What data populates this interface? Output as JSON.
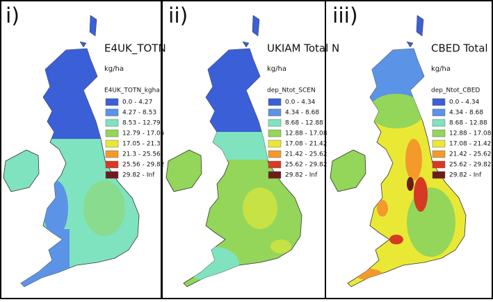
{
  "panels": [
    {
      "label": "i)",
      "title": "E4UK_TOTN",
      "unit": "kg/ha",
      "legend_title": "E4UK_TOTN_kgha",
      "legend": [
        {
          "label": "0.0 - 4.27",
          "color": "#3b5fd6"
        },
        {
          "label": "4.27 - 8.53",
          "color": "#5b93e6"
        },
        {
          "label": "8.53 - 12.79",
          "color": "#7fe3c0"
        },
        {
          "label": "12.79 - 17.05",
          "color": "#93d65a"
        },
        {
          "label": "17.05 - 21.3",
          "color": "#e9e935"
        },
        {
          "label": "21.3 - 25.56",
          "color": "#f39a2b"
        },
        {
          "label": "25.56 - 29.82",
          "color": "#d63a22"
        },
        {
          "label": "29.82 - Inf",
          "color": "#6e1b1b"
        }
      ]
    },
    {
      "label": "ii)",
      "title": "UKIAM Total N",
      "unit": "kg/ha",
      "legend_title": "dep_Ntot_SCEN",
      "legend": [
        {
          "label": "0.0 - 4.34",
          "color": "#3b5fd6"
        },
        {
          "label": "4.34 - 8.68",
          "color": "#5b93e6"
        },
        {
          "label": "8.68 - 12.88",
          "color": "#7fe3c0"
        },
        {
          "label": "12.88 - 17.08",
          "color": "#93d65a"
        },
        {
          "label": "17.08 - 21.42",
          "color": "#e9e935"
        },
        {
          "label": "21.42 - 25.62",
          "color": "#f39a2b"
        },
        {
          "label": "25.62 - 29.82",
          "color": "#d63a22"
        },
        {
          "label": "29.82 - Inf",
          "color": "#6e1b1b"
        }
      ]
    },
    {
      "label": "iii)",
      "title": "CBED Total N",
      "unit": "kg/ha",
      "legend_title": "dep_Ntot_CBED",
      "legend": [
        {
          "label": "0.0 - 4.34",
          "color": "#3b5fd6"
        },
        {
          "label": "4.34 - 8.68",
          "color": "#5b93e6"
        },
        {
          "label": "8.68 - 12.88",
          "color": "#7fe3c0"
        },
        {
          "label": "12.88 - 17.08",
          "color": "#93d65a"
        },
        {
          "label": "17.08 - 21.42",
          "color": "#e9e935"
        },
        {
          "label": "21.42 - 25.62",
          "color": "#f39a2b"
        },
        {
          "label": "25.62 - 29.82",
          "color": "#d63a22"
        },
        {
          "label": "29.82 - Inf",
          "color": "#6e1b1b"
        }
      ]
    }
  ]
}
